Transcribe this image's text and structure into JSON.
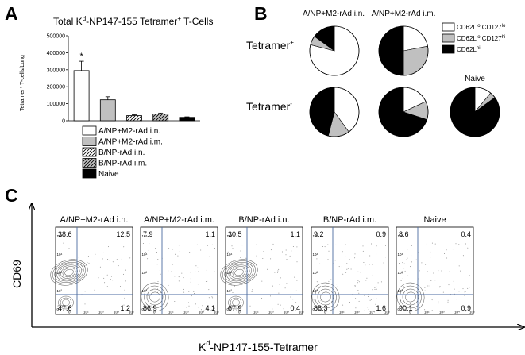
{
  "panel_labels": {
    "a": "A",
    "b": "B",
    "c": "C"
  },
  "bar_panel": {
    "title_pre": "Total K",
    "title_sup": "d",
    "title_post": "-NP147-155 Tetramer",
    "title_sup2": "+",
    "title_end": " T-Cells",
    "ylabel": "Tetramer⁺ T-cells/Lung",
    "significance": "*",
    "legend": [
      {
        "label": "A/NP+M2-rAd i.n.",
        "fill": "#ffffff",
        "hatch": false
      },
      {
        "label": "A/NP+M2-rAd i.m.",
        "fill": "#c0c0c0",
        "hatch": false
      },
      {
        "label": "B/NP-rAd i.n.",
        "fill": "#ffffff",
        "hatch": true
      },
      {
        "label": "B/NP-rAd i.m.",
        "fill": "#c0c0c0",
        "hatch": true
      },
      {
        "label": "Naive",
        "fill": "#000000",
        "hatch": false
      }
    ]
  },
  "pie_panel": {
    "col_labels": [
      "A/NP+M2-rAd i.n.",
      "A/NP+M2-rAd i.m."
    ],
    "naive_label": "Naive",
    "row_labels": [
      {
        "main": "Tetramer",
        "sup": "+"
      },
      {
        "main": "Tetramer",
        "sup": "-"
      }
    ],
    "legend": [
      {
        "pre": "CD62L",
        "s1": "lo",
        "mid": " CD127",
        "s2": "lo",
        "fill": "#ffffff"
      },
      {
        "pre": "CD62L",
        "s1": "lo",
        "mid": " CD127",
        "s2": "hi",
        "fill": "#c0c0c0"
      },
      {
        "pre": "CD62L",
        "s1": "hi",
        "mid": "",
        "s2": "",
        "fill": "#000000"
      }
    ]
  },
  "flow_panel": {
    "ylabel": "CD69",
    "xlabel_pre": "K",
    "xlabel_sup": "d",
    "xlabel_post": "-NP147-155-Tetramer",
    "y_ticks": [
      "10⁵",
      "10⁴",
      "10³",
      "10²",
      "0"
    ],
    "x_ticks": [
      "0",
      "10²",
      "10³",
      "10⁴",
      "10⁵"
    ],
    "plots": [
      {
        "title": "A/NP+M2-rAd i.n.",
        "ul": "38.6",
        "ur": "12.5",
        "ll": "47.6",
        "lr": "1.2",
        "contour": "strong"
      },
      {
        "title": "A/NP+M2-rAd i.m.",
        "ul": "7.9",
        "ur": "1.1",
        "ll": "86.9",
        "lr": "4.1",
        "contour": "weak"
      },
      {
        "title": "B/NP-rAd i.n.",
        "ul": "30.5",
        "ur": "1.1",
        "ll": "67.9",
        "lr": "0.4",
        "contour": "strong"
      },
      {
        "title": "B/NP-rAd i.m.",
        "ul": "9.2",
        "ur": "0.9",
        "ll": "88.3",
        "lr": "1.6",
        "contour": "weak"
      },
      {
        "title": "Naive",
        "ul": "8.6",
        "ur": "0.4",
        "ll": "90.1",
        "lr": "0.9",
        "contour": "weak"
      }
    ]
  },
  "chart_data": [
    {
      "type": "bar",
      "title": "Total Kd-NP147-155 Tetramer+ T-Cells",
      "ylabel": "Tetramer+ T-cells/Lung",
      "categories": [
        "A/NP+M2-rAd i.n.",
        "A/NP+M2-rAd i.m.",
        "B/NP-rAd i.n.",
        "B/NP-rAd i.m.",
        "Naive"
      ],
      "values": [
        295000,
        123000,
        30000,
        40000,
        20000
      ],
      "errors": [
        55000,
        18000,
        5000,
        5000,
        3000
      ],
      "ylim": [
        0,
        500000
      ],
      "yticks": [
        0,
        100000,
        200000,
        300000,
        400000,
        500000
      ],
      "legend_position": "below"
    },
    {
      "type": "pie",
      "legend_position": "right",
      "categories": [
        "CD62Llo CD127lo",
        "CD62Llo CD127hi",
        "CD62Lhi"
      ],
      "charts": [
        {
          "group": "A/NP+M2-rAd i.n.",
          "row": "Tetramer+",
          "values": [
            79,
            6,
            15
          ]
        },
        {
          "group": "A/NP+M2-rAd i.m.",
          "row": "Tetramer+",
          "values": [
            22,
            28,
            50
          ]
        },
        {
          "group": "A/NP+M2-rAd i.n.",
          "row": "Tetramer-",
          "values": [
            40,
            14,
            46
          ]
        },
        {
          "group": "A/NP+M2-rAd i.m.",
          "row": "Tetramer-",
          "values": [
            18,
            12,
            70
          ]
        },
        {
          "group": "Naive",
          "row": "Tetramer-",
          "values": [
            11,
            4,
            85
          ]
        }
      ]
    }
  ]
}
